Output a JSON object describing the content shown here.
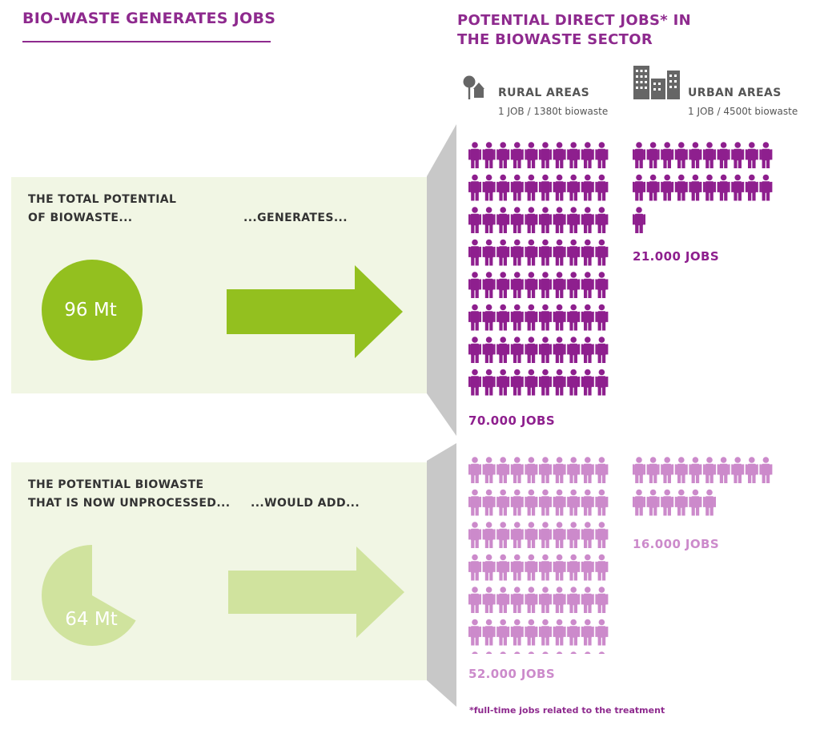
{
  "header": {
    "left_title": "BIO-WASTE GENERATES JOBS",
    "right_title_line1": "POTENTIAL DIRECT JOBS* IN",
    "right_title_line2": "THE BIOWASTE SECTOR"
  },
  "legend": {
    "rural_label": "RURAL AREAS",
    "rural_rate": "1 JOB / 1380t biowaste",
    "urban_label": "URBAN AREAS",
    "urban_rate": "1 JOB / 4500t biowaste"
  },
  "panels": {
    "total": {
      "line1": "THE TOTAL POTENTIAL",
      "line2": "OF BIOWASTE...",
      "verb": "...GENERATES...",
      "value_label": "96 Mt"
    },
    "unprocessed": {
      "line1": "THE POTENTIAL BIOWASTE",
      "line2": "THAT IS NOW UNPROCESSED...",
      "verb": "...WOULD ADD...",
      "value_label": "64 Mt"
    }
  },
  "footnote": "*full-time jobs related to the treatment",
  "colors": {
    "purple": "#8e1f8e",
    "light_purple": "#cc8acb",
    "green": "#93c01f",
    "light_green": "#d0e39e",
    "panel": "#f1f6e4",
    "title": "#8e2a8e"
  },
  "chart_data": [
    {
      "type": "pie",
      "categories": [
        "Biowaste"
      ],
      "values": [
        96
      ],
      "unit": "Mt",
      "fraction_shown": 1.0
    },
    {
      "type": "pie",
      "categories": [
        "Unprocessed biowaste"
      ],
      "values": [
        64
      ],
      "unit": "Mt",
      "fraction_shown": 0.667
    },
    {
      "type": "pictogram",
      "categories": [
        "RURAL AREAS",
        "URBAN AREAS"
      ],
      "series": [
        {
          "values": [
            70000,
            21000
          ],
          "icon_counts": [
            80,
            21
          ],
          "labels": [
            "70.000 JOBS",
            "21.000 JOBS"
          ]
        },
        {
          "values": [
            52000,
            16000
          ],
          "icon_counts": [
            74,
            16
          ],
          "labels": [
            "52.000 JOBS",
            "16.000 JOBS"
          ]
        }
      ]
    }
  ]
}
